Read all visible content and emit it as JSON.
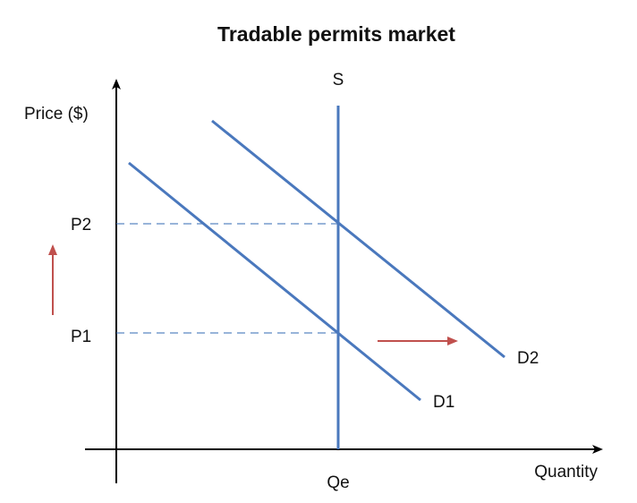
{
  "title": "Tradable permits market",
  "axes": {
    "y_label": "Price ($)",
    "x_label": "Quantity"
  },
  "curves": {
    "supply": {
      "label": "S"
    },
    "demand1": {
      "label": "D1"
    },
    "demand2": {
      "label": "D2"
    }
  },
  "levels": {
    "p1": "P1",
    "p2": "P2",
    "qe": "Qe"
  },
  "colors": {
    "curve": "#4a78bd",
    "guide": "#5a86c2",
    "arrow": "#c0504d",
    "axis": "#000000"
  },
  "icons": {
    "price_rise": "arrow-up-icon",
    "demand_shift": "arrow-right-icon"
  }
}
